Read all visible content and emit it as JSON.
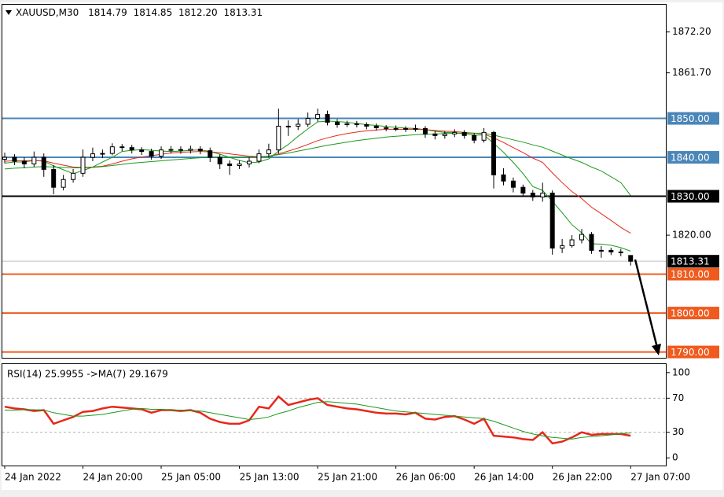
{
  "chart_data": [
    {
      "type": "candlestick",
      "title": "XAUUSD,M30",
      "header": [
        "1814.79",
        "1814.85",
        "1812.20",
        "1813.31"
      ],
      "up_color": "#ffffff",
      "down_color": "#000000",
      "edge_color": "#000000",
      "open": [
        1839.5,
        1840.0,
        1839.0,
        1838.3,
        1840.0,
        1836.9,
        1832.3,
        1834.3,
        1835.9,
        1840.0,
        1840.9,
        1841.0,
        1842.7,
        1842.5,
        1841.9,
        1841.5,
        1840.3,
        1841.9,
        1842.0,
        1841.8,
        1842.1,
        1841.7,
        1840.0,
        1838.3,
        1837.9,
        1838.3,
        1839.0,
        1840.9,
        1841.9,
        1848.0,
        1848.0,
        1848.5,
        1850.0,
        1851.0,
        1849.0,
        1848.4,
        1848.6,
        1848.4,
        1848.0,
        1847.6,
        1847.4,
        1847.4,
        1847.2,
        1847.4,
        1846.0,
        1845.6,
        1846.0,
        1846.4,
        1845.6,
        1844.4,
        1846.4,
        1835.5,
        1833.9,
        1832.3,
        1830.8,
        1829.8,
        1830.8,
        1816.7,
        1817.3,
        1818.8,
        1820.2,
        1816.1,
        1816.1,
        1815.7,
        1814.79
      ],
      "high": [
        1841.2,
        1840.8,
        1840.0,
        1841.5,
        1841.0,
        1838.0,
        1835.5,
        1837.0,
        1842.0,
        1842.5,
        1842.0,
        1843.6,
        1843.4,
        1843.2,
        1842.6,
        1842.2,
        1842.8,
        1842.9,
        1842.8,
        1843.0,
        1842.9,
        1842.5,
        1840.8,
        1839.2,
        1839.2,
        1840.0,
        1842.0,
        1843.5,
        1852.5,
        1849.5,
        1849.8,
        1851.5,
        1852.5,
        1852.0,
        1849.8,
        1849.4,
        1849.3,
        1849.0,
        1848.7,
        1848.3,
        1848.2,
        1848.0,
        1848.4,
        1848.0,
        1846.8,
        1846.8,
        1847.2,
        1847.0,
        1846.2,
        1847.5,
        1846.8,
        1837.2,
        1834.8,
        1833.0,
        1831.6,
        1833.5,
        1831.5,
        1819.0,
        1820.0,
        1821.6,
        1820.8,
        1817.2,
        1816.8,
        1816.5,
        1814.85
      ],
      "low": [
        1838.5,
        1838.0,
        1837.2,
        1837.5,
        1835.0,
        1830.5,
        1831.5,
        1833.5,
        1835.0,
        1839.0,
        1839.8,
        1840.5,
        1841.6,
        1841.0,
        1840.6,
        1839.4,
        1839.6,
        1841.0,
        1840.9,
        1841.0,
        1840.8,
        1838.8,
        1837.0,
        1835.5,
        1837.0,
        1837.4,
        1838.5,
        1840.0,
        1841.0,
        1845.5,
        1847.0,
        1847.8,
        1849.2,
        1848.2,
        1847.6,
        1847.8,
        1847.7,
        1847.2,
        1846.9,
        1846.7,
        1846.7,
        1846.5,
        1846.6,
        1845.0,
        1844.6,
        1844.8,
        1845.2,
        1844.8,
        1843.6,
        1843.8,
        1832.0,
        1832.8,
        1831.0,
        1829.8,
        1828.8,
        1828.6,
        1815.0,
        1815.4,
        1816.8,
        1817.9,
        1815.2,
        1814.2,
        1814.9,
        1814.6,
        1812.2
      ],
      "close": [
        1840.0,
        1839.0,
        1838.3,
        1840.0,
        1836.9,
        1832.3,
        1834.3,
        1835.9,
        1840.0,
        1840.9,
        1841.0,
        1842.7,
        1842.5,
        1841.9,
        1841.5,
        1840.3,
        1841.9,
        1842.0,
        1841.8,
        1842.1,
        1841.7,
        1840.0,
        1838.3,
        1837.9,
        1838.3,
        1839.0,
        1840.9,
        1841.9,
        1848.0,
        1848.0,
        1848.5,
        1850.0,
        1851.0,
        1849.0,
        1848.4,
        1848.6,
        1848.4,
        1848.0,
        1847.6,
        1847.4,
        1847.4,
        1847.2,
        1847.4,
        1846.0,
        1845.6,
        1846.0,
        1846.4,
        1845.6,
        1844.4,
        1846.4,
        1835.5,
        1833.9,
        1832.3,
        1830.8,
        1829.8,
        1830.8,
        1816.7,
        1817.3,
        1818.8,
        1820.2,
        1816.1,
        1816.1,
        1815.7,
        1815.5,
        1813.31
      ],
      "series": [
        {
          "color": "#1a9a1a",
          "values": [
            1838.5,
            1838.8,
            1838.8,
            1839.2,
            1839.0,
            1837.8,
            1836.8,
            1835.8,
            1836.6,
            1837.5,
            1838.8,
            1840.0,
            1841.5,
            1841.8,
            1842.0,
            1841.8,
            1841.6,
            1841.5,
            1841.6,
            1841.8,
            1841.9,
            1841.5,
            1840.8,
            1840.0,
            1839.2,
            1838.6,
            1838.8,
            1839.6,
            1841.6,
            1843.3,
            1845.4,
            1847.3,
            1849.1,
            1849.3,
            1849.2,
            1849.0,
            1848.7,
            1848.4,
            1848.2,
            1847.9,
            1847.7,
            1847.5,
            1847.4,
            1847.1,
            1846.7,
            1846.4,
            1846.3,
            1846.0,
            1845.7,
            1845.7,
            1843.6,
            1841.3,
            1838.7,
            1835.8,
            1832.5,
            1831.5,
            1828.7,
            1825.8,
            1822.7,
            1820.6,
            1817.8,
            1817.7,
            1817.4,
            1816.8,
            1815.9
          ]
        },
        {
          "color": "#e8261a",
          "values": [
            1839.0,
            1839.1,
            1839.1,
            1839.2,
            1839.1,
            1838.5,
            1838.0,
            1837.5,
            1837.4,
            1837.5,
            1837.7,
            1838.3,
            1839.0,
            1839.6,
            1840.1,
            1840.4,
            1840.8,
            1841.1,
            1841.3,
            1841.4,
            1841.5,
            1841.4,
            1841.2,
            1840.9,
            1840.6,
            1840.3,
            1840.2,
            1840.3,
            1840.9,
            1841.6,
            1842.4,
            1843.3,
            1844.3,
            1845.0,
            1845.6,
            1846.1,
            1846.5,
            1846.8,
            1847.0,
            1847.2,
            1847.2,
            1847.2,
            1847.2,
            1847.1,
            1846.9,
            1846.7,
            1846.6,
            1846.4,
            1846.2,
            1846.0,
            1845.0,
            1843.8,
            1842.5,
            1841.2,
            1839.8,
            1838.7,
            1836.0,
            1833.5,
            1831.2,
            1829.4,
            1827.2,
            1825.5,
            1823.8,
            1822.0,
            1820.5
          ]
        },
        {
          "color": "#1a9a1a",
          "values": [
            1837.0,
            1837.2,
            1837.3,
            1837.5,
            1837.6,
            1837.5,
            1837.4,
            1837.3,
            1837.3,
            1837.4,
            1837.6,
            1837.9,
            1838.2,
            1838.5,
            1838.7,
            1838.9,
            1839.1,
            1839.3,
            1839.5,
            1839.7,
            1839.9,
            1840.0,
            1840.0,
            1840.0,
            1840.0,
            1840.0,
            1840.1,
            1840.3,
            1840.7,
            1841.1,
            1841.6,
            1842.1,
            1842.6,
            1843.1,
            1843.5,
            1843.9,
            1844.3,
            1844.6,
            1844.9,
            1845.2,
            1845.4,
            1845.6,
            1845.8,
            1845.9,
            1846.0,
            1846.1,
            1846.2,
            1846.2,
            1846.2,
            1846.2,
            1845.7,
            1845.1,
            1844.5,
            1843.9,
            1843.2,
            1842.6,
            1841.6,
            1840.6,
            1839.6,
            1838.7,
            1837.5,
            1836.5,
            1835.0,
            1833.5,
            1830.2
          ]
        }
      ],
      "levels": [
        {
          "value": 1850,
          "label": "1850.00",
          "color": "#4a86b8"
        },
        {
          "value": 1840,
          "label": "1840.00",
          "color": "#4a86b8"
        },
        {
          "value": 1830,
          "label": "1830.00",
          "color": "#000000"
        },
        {
          "value": 1810,
          "label": "1810.00",
          "color": "#f05a1e"
        },
        {
          "value": 1800,
          "label": "1800.00",
          "color": "#f05a1e"
        },
        {
          "value": 1790,
          "label": "1790.00",
          "color": "#f05a1e"
        }
      ],
      "current": {
        "value": 1813.31,
        "label": "1813.31",
        "color": "#c0c0c0"
      },
      "xlim": [
        -0.24,
        67.6
      ],
      "ylim": [
        1788.5,
        1879.2
      ],
      "yticks": [
        {
          "value": 1872.2,
          "label": "1872.20"
        },
        {
          "value": 1861.7,
          "label": "1861.70"
        },
        {
          "value": 1820,
          "label": "1820.00"
        }
      ]
    },
    {
      "type": "line",
      "title": "RSI(14) 25.9955 ->MA(7) 29.1679",
      "categories": [
        "24 Jan 2022",
        null,
        null,
        null,
        null,
        null,
        null,
        null,
        "24 Jan 20:00",
        null,
        null,
        null,
        null,
        null,
        null,
        null,
        "25 Jan 05:00",
        null,
        null,
        null,
        null,
        null,
        null,
        null,
        "25 Jan 13:00",
        null,
        null,
        null,
        null,
        null,
        null,
        null,
        "25 Jan 21:00",
        null,
        null,
        null,
        null,
        null,
        null,
        null,
        "26 Jan 06:00",
        null,
        null,
        null,
        null,
        null,
        null,
        null,
        "26 Jan 14:00",
        null,
        null,
        null,
        null,
        null,
        null,
        null,
        "26 Jan 22:00",
        null,
        null,
        null,
        null,
        null,
        null,
        null,
        "27 Jan 07:00"
      ],
      "series": [
        {
          "color": "#e8261a",
          "width": 2.5,
          "values": [
            60,
            58,
            57,
            55,
            56,
            40,
            44,
            48,
            54,
            55,
            58,
            60,
            59,
            58,
            57,
            53,
            56,
            56,
            55,
            56,
            53,
            46,
            42,
            40,
            40,
            44,
            60,
            58,
            72,
            62,
            65,
            68,
            70,
            62,
            60,
            58,
            57,
            55,
            53,
            52,
            52,
            51,
            53,
            46,
            45,
            48,
            49,
            45,
            40,
            46,
            26,
            25,
            24,
            22,
            21,
            30,
            17,
            19,
            24,
            30,
            27,
            28,
            28,
            28,
            25.9955
          ]
        },
        {
          "color": "#1a9a1a",
          "width": 1,
          "values": [
            56,
            56,
            56.5,
            56.5,
            56,
            53,
            51,
            49,
            49,
            50,
            51,
            53,
            55,
            57,
            58,
            57,
            57,
            56,
            56,
            55.5,
            55,
            53,
            51,
            49,
            47,
            45,
            46,
            48,
            52,
            55,
            59,
            62,
            65,
            66,
            65,
            64,
            63,
            61,
            59,
            57,
            55,
            54,
            53,
            52,
            51,
            50,
            49,
            48,
            47,
            46,
            43,
            39,
            35,
            31,
            28,
            26,
            24,
            23,
            22,
            24,
            25,
            26,
            27,
            28.5,
            29.1679
          ]
        }
      ],
      "levels": [
        {
          "value": 70,
          "color": "#b0b0b0"
        },
        {
          "value": 30,
          "color": "#b0b0b0"
        }
      ],
      "xlim": [
        -0.24,
        67.6
      ],
      "ylim": [
        -9,
        110
      ],
      "yticks": [
        100,
        70,
        30,
        0
      ]
    }
  ]
}
